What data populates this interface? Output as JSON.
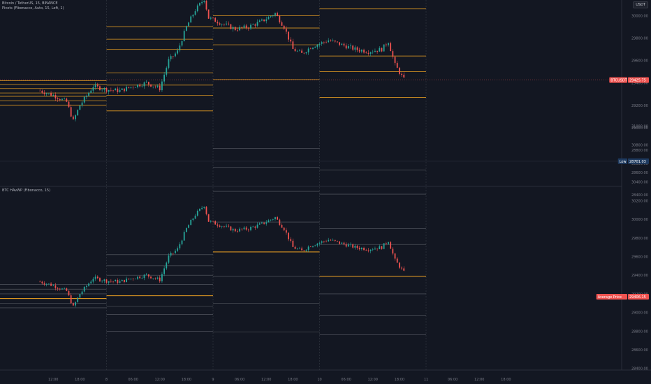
{
  "header": {
    "symbol_title": "Bitcoin / TetherUS, 15, BINANCE",
    "pivots_title": "Pivots (Fibonacco, Auto, 15, Left, 1)",
    "currency": "USDT"
  },
  "indicator": {
    "title": "BTC HAvWP (Fibonacco, 15)"
  },
  "price_axis_top": {
    "ticks": [
      "30800.00",
      "30600.00",
      "30400.00",
      "30200.00",
      "30000.00",
      "29800.00",
      "29600.00",
      "29400.00",
      "29200.00",
      "29000.00",
      "28800.00",
      "28600.00",
      "28400.00"
    ],
    "high_label": "High",
    "high_value": "30244.00",
    "current_label": "BTCUSDT",
    "current_value": "29425.75",
    "low_label": "Low",
    "low_value": "28701.03"
  },
  "price_axis_bottom": {
    "ticks": [
      "31000.00",
      "30800.00",
      "30600.00",
      "30400.00",
      "30200.00",
      "30000.00",
      "29800.00",
      "29600.00",
      "29400.00",
      "29200.00",
      "29000.00",
      "28800.00",
      "28600.00",
      "28400.00"
    ],
    "avg_label": "Average Price",
    "avg_value": "29406.15"
  },
  "time_axis": {
    "ticks": [
      "12:00",
      "18:00",
      "8",
      "06:00",
      "12:00",
      "18:00",
      "9",
      "06:00",
      "12:00",
      "18:00",
      "10",
      "06:00",
      "12:00",
      "18:00",
      "11",
      "06:00",
      "12:00",
      "18:00"
    ]
  },
  "colors": {
    "background": "#131722",
    "grid": "#1e222d",
    "up": "#26a69a",
    "down": "#ef5350",
    "pivot": "#f5a623",
    "pivot_dim": "#5d6068",
    "text": "#787b86",
    "high_tag": "#2962ff",
    "current_tag": "#ef5350",
    "low_tag": "#1e3a5f",
    "avg_tag": "#ef5350"
  },
  "chart_data": {
    "type": "candlestick",
    "series": [
      {
        "name": "BTCUSDT",
        "path": [
          [
            "7 09:00",
            29330
          ],
          [
            "7 12:00",
            29290
          ],
          [
            "7 15:00",
            29230
          ],
          [
            "7 16:30",
            29060
          ],
          [
            "7 18:00",
            29200
          ],
          [
            "7 21:00",
            29370
          ],
          [
            "8 00:00",
            29340
          ],
          [
            "8 03:00",
            29330
          ],
          [
            "8 06:00",
            29370
          ],
          [
            "8 09:00",
            29400
          ],
          [
            "8 12:00",
            29350
          ],
          [
            "8 14:00",
            29600
          ],
          [
            "8 16:00",
            29680
          ],
          [
            "8 18:00",
            29900
          ],
          [
            "8 20:00",
            30050
          ],
          [
            "8 22:00",
            30150
          ],
          [
            "8 23:00",
            29980
          ],
          [
            "9 02:00",
            29930
          ],
          [
            "9 05:00",
            29880
          ],
          [
            "9 08:00",
            29900
          ],
          [
            "9 11:00",
            29950
          ],
          [
            "9 14:00",
            30020
          ],
          [
            "9 16:00",
            29900
          ],
          [
            "9 18:00",
            29700
          ],
          [
            "9 20:00",
            29660
          ],
          [
            "9 22:00",
            29720
          ],
          [
            "10 02:00",
            29780
          ],
          [
            "10 05:00",
            29740
          ],
          [
            "10 08:00",
            29700
          ],
          [
            "10 11:00",
            29680
          ],
          [
            "10 14:00",
            29700
          ],
          [
            "10 15:30",
            29770
          ],
          [
            "10 17:00",
            29560
          ],
          [
            "10 19:00",
            29430
          ]
        ]
      }
    ],
    "pivot_levels": [
      {
        "day": "7",
        "levels": [
          29420,
          29385,
          29350,
          29310,
          29280,
          29240,
          29200
        ]
      },
      {
        "day": "8",
        "levels": [
          29900,
          29790,
          29700,
          29490,
          29380,
          29290,
          29150
        ]
      },
      {
        "day": "9",
        "levels": [
          31000,
          30700,
          30480,
          30000,
          29890,
          29740,
          29430
        ]
      },
      {
        "day": "10",
        "levels": [
          30700,
          30480,
          30370,
          30060,
          29640,
          29500,
          29270
        ]
      }
    ],
    "havwp_levels": [
      {
        "day": "7",
        "levels": [
          29300,
          29250,
          29200,
          29150,
          29100,
          29050
        ]
      },
      {
        "day": "8",
        "levels": [
          29620,
          29500,
          29400,
          29300,
          29180,
          29070,
          28980,
          28800
        ]
      },
      {
        "day": "9",
        "levels": [
          30760,
          30560,
          30300,
          29970,
          29650,
          29390,
          29100,
          28790
        ]
      },
      {
        "day": "10",
        "levels": [
          30530,
          30270,
          29900,
          29730,
          29390,
          29200,
          28970,
          28760
        ]
      }
    ]
  }
}
